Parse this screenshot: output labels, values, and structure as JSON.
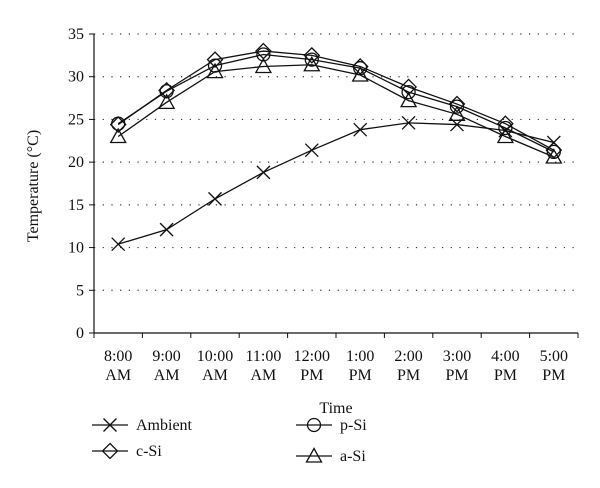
{
  "chart_data": {
    "type": "line",
    "xlabel": "Time",
    "ylabel": "Temperature (°C)",
    "ylim": [
      0,
      35
    ],
    "yticks": [
      0,
      5,
      10,
      15,
      20,
      25,
      30,
      35
    ],
    "grid": "horizontal-dotted",
    "legend_position": "bottom",
    "categories": [
      [
        "8:00",
        "AM"
      ],
      [
        "9:00",
        "AM"
      ],
      [
        "10:00",
        "AM"
      ],
      [
        "11:00",
        "AM"
      ],
      [
        "12:00",
        "PM"
      ],
      [
        "1:00",
        "PM"
      ],
      [
        "2:00",
        "PM"
      ],
      [
        "3:00",
        "PM"
      ],
      [
        "4:00",
        "PM"
      ],
      [
        "5:00",
        "PM"
      ]
    ],
    "series": [
      {
        "name": "Ambient",
        "marker": "x",
        "values": [
          10.4,
          12.1,
          15.7,
          18.8,
          21.4,
          23.8,
          24.6,
          24.4,
          23.7,
          22.3
        ]
      },
      {
        "name": "c-Si",
        "marker": "diamond",
        "values": [
          24.4,
          28.4,
          32.0,
          33.0,
          32.5,
          31.2,
          28.8,
          26.8,
          24.5,
          21.4
        ]
      },
      {
        "name": "p-Si",
        "marker": "circle",
        "values": [
          24.5,
          28.3,
          31.3,
          32.6,
          32.0,
          31.0,
          28.2,
          26.5,
          24.0,
          21.2
        ]
      },
      {
        "name": "a-Si",
        "marker": "triangle",
        "values": [
          23.0,
          27.0,
          30.6,
          31.2,
          31.4,
          30.2,
          27.2,
          25.6,
          23.0,
          20.6
        ]
      }
    ]
  }
}
